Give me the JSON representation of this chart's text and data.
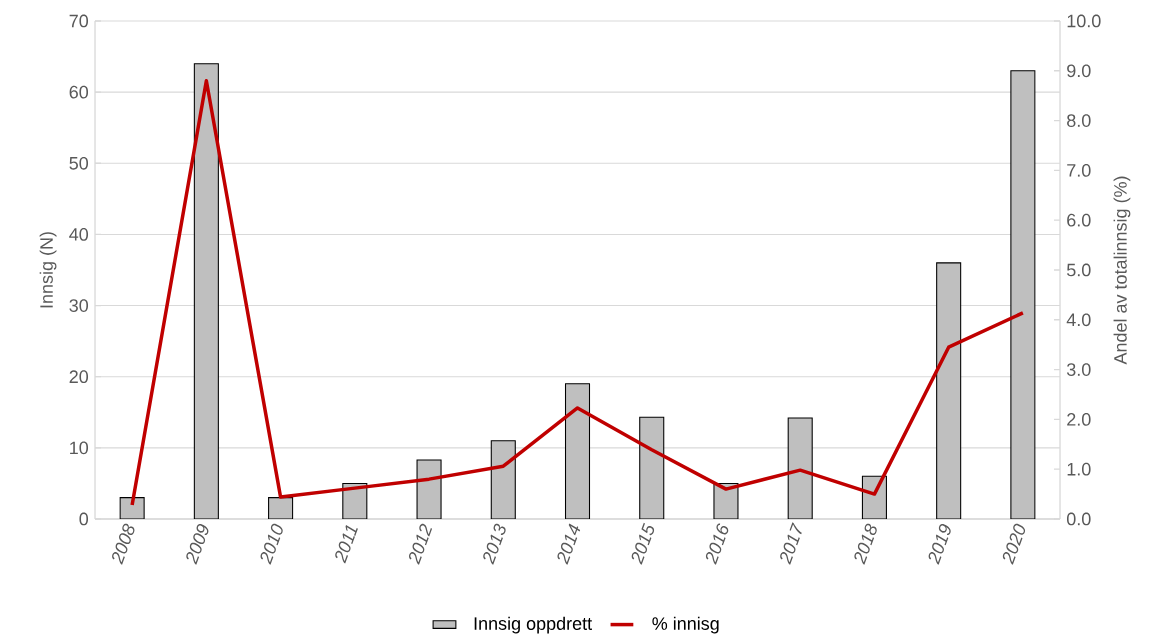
{
  "chart_data": {
    "type": "bar",
    "categories": [
      "2008",
      "2009",
      "2010",
      "2011",
      "2012",
      "2013",
      "2014",
      "2015",
      "2016",
      "2017",
      "2018",
      "2019",
      "2020"
    ],
    "series": [
      {
        "name": "Innsig oppdrett",
        "color": "#bfbfbf",
        "values": [
          3,
          64,
          3,
          5,
          8.3,
          11,
          19,
          14.3,
          5,
          14.2,
          6,
          36,
          63
        ]
      },
      {
        "name": "% innisg",
        "type": "line",
        "axis": "y2",
        "color": "#c00000",
        "values": [
          0.28,
          8.8,
          0.44,
          0.62,
          0.8,
          1.06,
          2.23,
          1.39,
          0.6,
          0.98,
          0.5,
          3.45,
          4.14
        ]
      }
    ],
    "ylabel": "Innsig (N)",
    "y2label": "Andel av totalinnsig (%)",
    "ylim": [
      0,
      70
    ],
    "yticks": [
      0,
      10,
      20,
      30,
      40,
      50,
      60,
      70
    ],
    "y2lim": [
      0,
      10
    ],
    "y2ticks": [
      {
        "value": 0,
        "label": "0.0"
      },
      {
        "value": 1,
        "label": "1.0"
      },
      {
        "value": 2,
        "label": "2.0"
      },
      {
        "value": 3,
        "label": "3.0"
      },
      {
        "value": 4,
        "label": "4.0"
      },
      {
        "value": 5,
        "label": "5.0"
      },
      {
        "value": 6,
        "label": "6.0"
      },
      {
        "value": 7,
        "label": "7.0"
      },
      {
        "value": 8,
        "label": "8.0"
      },
      {
        "value": 9,
        "label": "9.0"
      },
      {
        "value": 10,
        "label": "10.0"
      }
    ],
    "grid": "y",
    "legend": "bottom"
  }
}
